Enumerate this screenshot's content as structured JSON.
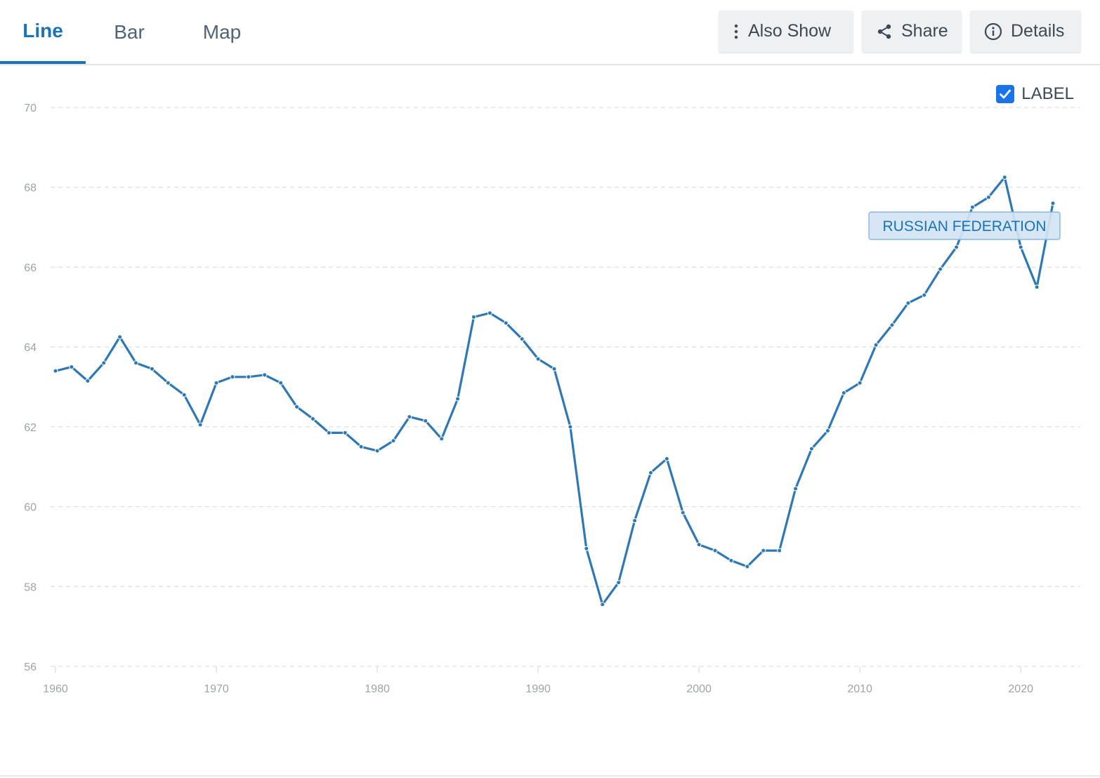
{
  "tabs": [
    {
      "label": "Line",
      "active": true
    },
    {
      "label": "Bar",
      "active": false
    },
    {
      "label": "Map",
      "active": false
    }
  ],
  "toolbar": {
    "also_show": {
      "label": "Also Show",
      "icon": "vertical-ellipsis-icon"
    },
    "share": {
      "label": "Share",
      "icon": "share-icon"
    },
    "details": {
      "label": "Details",
      "icon": "info-circle-icon"
    }
  },
  "label_toggle": {
    "label": "LABEL",
    "checked": true
  },
  "colors": {
    "accent": "#1a73b5",
    "series": "#2e78b4",
    "checkbox": "#1a73e8",
    "series_label_bg": "#d2e4f3",
    "series_label_border": "#8cb6dc",
    "grid": "#dcdfe2",
    "tick_text": "#9ca4ab"
  },
  "chart_data": {
    "type": "line",
    "ylim": [
      56,
      70
    ],
    "yticks": [
      56,
      58,
      60,
      62,
      64,
      66,
      68,
      70
    ],
    "xlim": [
      1960,
      2022
    ],
    "xticks": [
      1960,
      1970,
      1980,
      1990,
      2000,
      2010,
      2020
    ],
    "grid": true,
    "series": [
      {
        "name": "RUSSIAN FEDERATION",
        "x": [
          1960,
          1961,
          1962,
          1963,
          1964,
          1965,
          1966,
          1967,
          1968,
          1969,
          1970,
          1971,
          1972,
          1973,
          1974,
          1975,
          1976,
          1977,
          1978,
          1979,
          1980,
          1981,
          1982,
          1983,
          1984,
          1985,
          1986,
          1987,
          1988,
          1989,
          1990,
          1991,
          1992,
          1993,
          1994,
          1995,
          1996,
          1997,
          1998,
          1999,
          2000,
          2001,
          2002,
          2003,
          2004,
          2005,
          2006,
          2007,
          2008,
          2009,
          2010,
          2011,
          2012,
          2013,
          2014,
          2015,
          2016,
          2017,
          2018,
          2019,
          2020,
          2021,
          2022
        ],
        "values": [
          63.4,
          63.5,
          63.15,
          63.6,
          64.25,
          63.6,
          63.45,
          63.1,
          62.8,
          62.05,
          63.1,
          63.25,
          63.25,
          63.3,
          63.1,
          62.5,
          62.2,
          61.85,
          61.85,
          61.5,
          61.4,
          61.65,
          62.25,
          62.15,
          61.7,
          62.7,
          64.75,
          64.85,
          64.6,
          64.2,
          63.7,
          63.45,
          62.0,
          58.95,
          57.55,
          58.1,
          59.65,
          60.85,
          61.2,
          59.85,
          59.05,
          58.9,
          58.65,
          58.5,
          58.9,
          58.9,
          60.45,
          61.45,
          61.9,
          62.85,
          63.1,
          64.05,
          64.55,
          65.1,
          65.3,
          65.95,
          66.5,
          67.5,
          67.75,
          68.25,
          66.5,
          65.5,
          67.6
        ]
      }
    ]
  }
}
